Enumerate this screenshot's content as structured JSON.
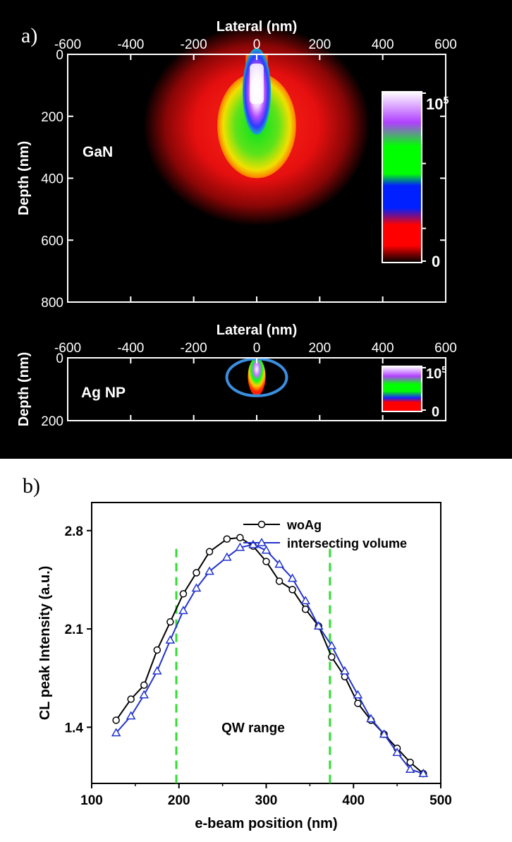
{
  "panel_a": {
    "label": "a)",
    "chart_data": [
      {
        "type": "heatmap",
        "xlabel": "Lateral (nm)",
        "ylabel": "Depth (nm)",
        "xlim": [
          -600,
          600
        ],
        "ylim": [
          800,
          0
        ],
        "xticks": [
          "-600",
          "-400",
          "-200",
          "0",
          "200",
          "400",
          "600"
        ],
        "xtick_values": [
          -600,
          -400,
          -200,
          0,
          200,
          400,
          600
        ],
        "yticks": [
          "0",
          "200",
          "400",
          "600",
          "800"
        ],
        "ytick_values": [
          0,
          200,
          400,
          600,
          800
        ],
        "annotation": "GaN",
        "colorbar": {
          "max": "10",
          "max_exp": "5",
          "min": "0",
          "colors": [
            "#000000",
            "#ff0000",
            "#0000ff",
            "#00ff00",
            "#b040ff",
            "#ffffff"
          ]
        }
      },
      {
        "type": "heatmap",
        "xlabel": "Lateral (nm)",
        "ylabel": "Depth (nm)",
        "xlim": [
          -600,
          600
        ],
        "ylim": [
          200,
          0
        ],
        "xticks": [
          "-600",
          "-400",
          "-200",
          "0",
          "200",
          "400",
          "600"
        ],
        "xtick_values": [
          -600,
          -400,
          -200,
          0,
          200,
          400,
          600
        ],
        "yticks": [
          "0",
          "200"
        ],
        "ytick_values": [
          0,
          200
        ],
        "annotation": "Ag NP",
        "highlight_color": "#3b8fe0",
        "colorbar": {
          "max": "10",
          "max_exp": "5",
          "min": "0",
          "colors": [
            "#000000",
            "#ff0000",
            "#0000ff",
            "#00ff00",
            "#b040ff",
            "#ffffff"
          ]
        }
      }
    ]
  },
  "panel_b": {
    "label": "b)",
    "chart_data": {
      "type": "line",
      "xlabel": "e-beam position (nm)",
      "ylabel": "CL peak Intensity (a.u.)",
      "xlim": [
        100,
        500
      ],
      "ylim": [
        1.0,
        3.0
      ],
      "xticks": [
        "100",
        "200",
        "300",
        "400",
        "500"
      ],
      "xtick_values": [
        100,
        200,
        300,
        400,
        500
      ],
      "yticks": [
        "1.4",
        "2.1",
        "2.8"
      ],
      "ytick_values": [
        1.4,
        2.1,
        2.8
      ],
      "x": [
        128,
        145,
        160,
        175,
        190,
        205,
        220,
        235,
        255,
        270,
        285,
        300,
        315,
        330,
        345,
        360,
        375,
        390,
        405,
        420,
        435,
        450,
        465,
        480
      ],
      "series": [
        {
          "name": "woAg",
          "color": "#000000",
          "marker": "circle",
          "values": [
            1.45,
            1.6,
            1.7,
            1.95,
            2.15,
            2.35,
            2.5,
            2.65,
            2.74,
            2.75,
            2.69,
            2.58,
            2.44,
            2.38,
            2.24,
            2.12,
            1.9,
            1.76,
            1.57,
            1.45,
            1.35,
            1.25,
            1.15,
            1.07
          ]
        },
        {
          "name": "intersecting volume",
          "color": "#2233cc",
          "marker": "triangle",
          "values": [
            1.36,
            1.48,
            1.63,
            1.8,
            2.02,
            2.23,
            2.39,
            2.51,
            2.61,
            2.68,
            2.7,
            2.66,
            2.56,
            2.46,
            2.3,
            2.12,
            1.98,
            1.8,
            1.63,
            1.46,
            1.35,
            1.22,
            1.1,
            1.07
          ]
        }
      ],
      "vlines": [
        197,
        373
      ],
      "vline_color": "#33dd33",
      "annotation": "QW range",
      "legend": "top-right"
    }
  }
}
